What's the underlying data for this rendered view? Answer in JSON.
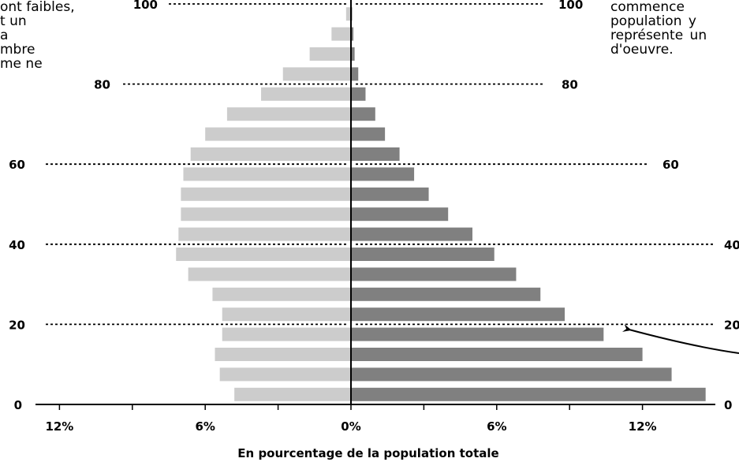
{
  "notes": {
    "left_text": "ont faibles,\nt un\na\nmbre\nme ne",
    "right_text": "commence\npopulation y\nreprésente un\nd'oeuvre."
  },
  "chart_data": {
    "type": "bar",
    "orientation": "horizontal",
    "subtype": "population pyramid",
    "xlabel": "En pourcentage de la population totale",
    "ylabel": "",
    "x_ticks": [
      "12%",
      "6%",
      "0%",
      "6%",
      "12%"
    ],
    "x_tick_values": [
      -12,
      -6,
      0,
      6,
      12
    ],
    "y_ticks": [
      0,
      20,
      40,
      60,
      80,
      100
    ],
    "y_tick_labels": [
      "0",
      "20",
      "40",
      "60",
      "80",
      "100"
    ],
    "xlim": [
      -12.5,
      14.7
    ],
    "ylim": [
      0,
      102.5
    ],
    "grid": "dotted lines at ages 20, 40, 60, 80, 100",
    "age_groups": [
      "0-5",
      "5-10",
      "10-15",
      "15-20",
      "20-25",
      "25-30",
      "30-35",
      "35-40",
      "40-45",
      "45-50",
      "50-55",
      "55-60",
      "60-65",
      "65-70",
      "70-75",
      "75-80",
      "80-85",
      "85-90",
      "90-95",
      "95-100"
    ],
    "series": [
      {
        "side": "left",
        "color": "#cccccc",
        "values": [
          4.8,
          5.4,
          5.6,
          5.3,
          5.3,
          5.7,
          6.7,
          7.2,
          7.1,
          7.0,
          7.0,
          6.9,
          6.6,
          6.0,
          5.1,
          3.7,
          2.8,
          1.7,
          0.8,
          0.2
        ]
      },
      {
        "side": "right",
        "color": "#808080",
        "values": [
          14.6,
          13.2,
          12.0,
          10.4,
          8.8,
          7.8,
          6.8,
          5.9,
          5.0,
          4.0,
          3.2,
          2.6,
          2.0,
          1.4,
          1.0,
          0.6,
          0.3,
          0.15,
          0.1,
          0.05
        ]
      }
    ],
    "annotation": {
      "type": "arrow",
      "points_to_value": 20,
      "side": "right"
    }
  }
}
